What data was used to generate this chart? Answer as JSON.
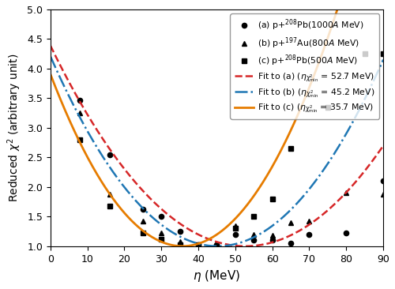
{
  "title": "",
  "xlabel": "$\\eta$ (MeV)",
  "ylabel": "Reduced $\\chi^2$ (arbitrary unit)",
  "xlim": [
    0,
    90
  ],
  "ylim": [
    1.0,
    5.0
  ],
  "xticks": [
    0,
    10,
    20,
    30,
    40,
    50,
    60,
    70,
    80,
    90
  ],
  "yticks": [
    1.0,
    1.5,
    2.0,
    2.5,
    3.0,
    3.5,
    4.0,
    4.5,
    5.0
  ],
  "data_a": {
    "x": [
      8,
      16,
      25,
      30,
      35,
      40,
      45,
      50,
      55,
      60,
      65,
      70,
      80,
      90
    ],
    "y": [
      3.47,
      2.55,
      1.62,
      1.5,
      1.25,
      1.03,
      1.02,
      1.2,
      1.1,
      1.1,
      1.05,
      1.2,
      1.22,
      2.1
    ],
    "marker": "o",
    "color": "black",
    "label": "(a) p+$^{208}$Pb(1000$A$ MeV)",
    "markersize": 4.5
  },
  "data_b": {
    "x": [
      8,
      16,
      25,
      30,
      35,
      40,
      45,
      50,
      55,
      60,
      65,
      70,
      80,
      90
    ],
    "y": [
      3.25,
      1.88,
      1.42,
      1.22,
      1.08,
      1.03,
      1.02,
      1.35,
      1.2,
      1.18,
      1.4,
      1.42,
      1.9,
      1.88
    ],
    "marker": "^",
    "color": "black",
    "label": "(b) p+$^{197}$Au(800$A$ MeV)",
    "markersize": 4.5
  },
  "data_c": {
    "x": [
      8,
      16,
      25,
      30,
      35,
      40,
      45,
      50,
      55,
      60,
      65,
      75,
      85,
      90
    ],
    "y": [
      2.8,
      1.68,
      1.22,
      1.12,
      1.02,
      1.02,
      1.0,
      1.3,
      1.5,
      1.8,
      2.65,
      3.35,
      4.25,
      4.25
    ],
    "marker": "s",
    "color": "black",
    "label": "(c) p+$^{208}$Pb(500$A$ MeV)",
    "markersize": 4.5
  },
  "fit_a": {
    "eta_min": 52.7,
    "color": "#d62728",
    "linestyle": "--",
    "linewidth": 1.8,
    "label": "Fit to (a) ($\\eta_{\\chi^2_{\\mathrm{min}}}$ = 52.7 MeV)",
    "A": 0.00122
  },
  "fit_b": {
    "eta_min": 45.2,
    "color": "#1f77b4",
    "linestyle": "-.",
    "linewidth": 1.8,
    "label": "Fit to (b) ($\\eta_{\\chi^2_{\\mathrm{min}}}$ = 45.2 MeV)",
    "A": 0.00157
  },
  "fit_c": {
    "eta_min": 35.7,
    "color": "#e67c00",
    "linestyle": "-",
    "linewidth": 2.0,
    "label": "Fit to (c) ($\\eta_{\\chi^2_{\\mathrm{min}}}$ = 35.7 MeV)",
    "A": 0.00228
  },
  "legend_fontsize": 7.8,
  "xlabel_fontsize": 11,
  "ylabel_fontsize": 10,
  "tick_labelsize": 9
}
